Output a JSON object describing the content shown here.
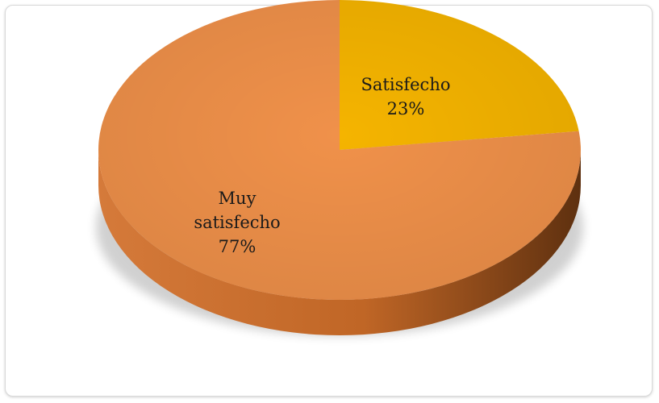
{
  "chart_data": {
    "type": "pie",
    "style": "3d",
    "slices": [
      {
        "label": "Muy satisfecho",
        "value": 77,
        "percent_label": "77%",
        "color": "#F0914A",
        "side_color": "#C46A28"
      },
      {
        "label": "Satisfecho",
        "value": 23,
        "percent_label": "23%",
        "color": "#F5B400",
        "side_color": "#C48F00"
      }
    ],
    "legend": "none"
  }
}
